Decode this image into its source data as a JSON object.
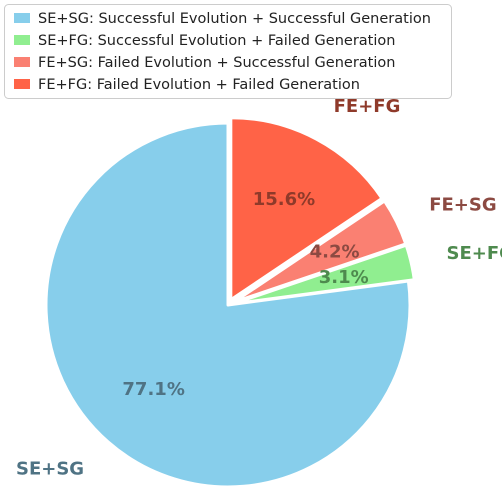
{
  "chart_data": {
    "type": "pie",
    "categories": [
      "SE+SG",
      "SE+FG",
      "FE+SG",
      "FE+FG"
    ],
    "legend_labels": [
      "SE+SG: Successful Evolution + Successful Generation",
      "SE+FG: Successful Evolution + Failed Generation",
      "FE+SG: Failed Evolution + Successful Generation",
      "FE+FG: Failed Evolution + Failed Generation"
    ],
    "values": [
      77.1,
      3.1,
      4.2,
      15.6
    ],
    "value_labels": [
      "77.1%",
      "3.1%",
      "4.2%",
      "15.6%"
    ],
    "colors": [
      "#87ceeb",
      "#90ee90",
      "#fa8072",
      "#ff6347"
    ],
    "label_colors": [
      "#4f7384",
      "#4e8a4e",
      "#8c4a42",
      "#8f3a2a"
    ],
    "legend": "upper left"
  }
}
